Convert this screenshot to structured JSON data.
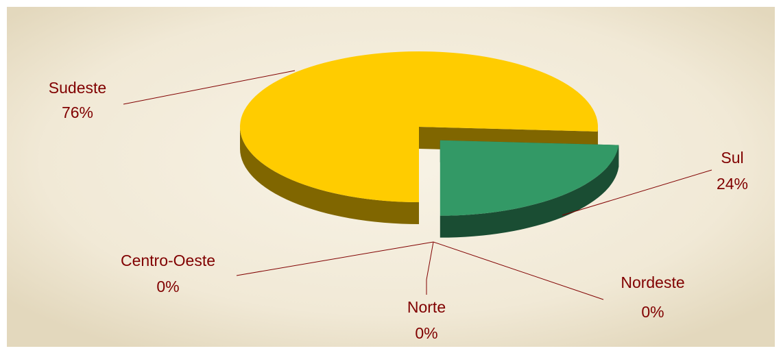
{
  "chart_data": {
    "type": "pie3d",
    "categories": [
      "Sudeste",
      "Sul",
      "Centro-Oeste",
      "Norte",
      "Nordeste"
    ],
    "values": [
      76,
      24,
      0,
      0,
      0
    ],
    "value_labels": [
      "76%",
      "24%",
      "0%",
      "0%",
      "0%"
    ],
    "colors": [
      "#FFCC00",
      "#339966",
      "#3366CC",
      "#CC3333",
      "#9999FF"
    ],
    "side_colors": [
      "#806600",
      "#1A4D33",
      "#1A3366",
      "#661A1A",
      "#4D4D80"
    ],
    "explode": [
      0,
      1,
      0,
      0,
      0
    ]
  }
}
